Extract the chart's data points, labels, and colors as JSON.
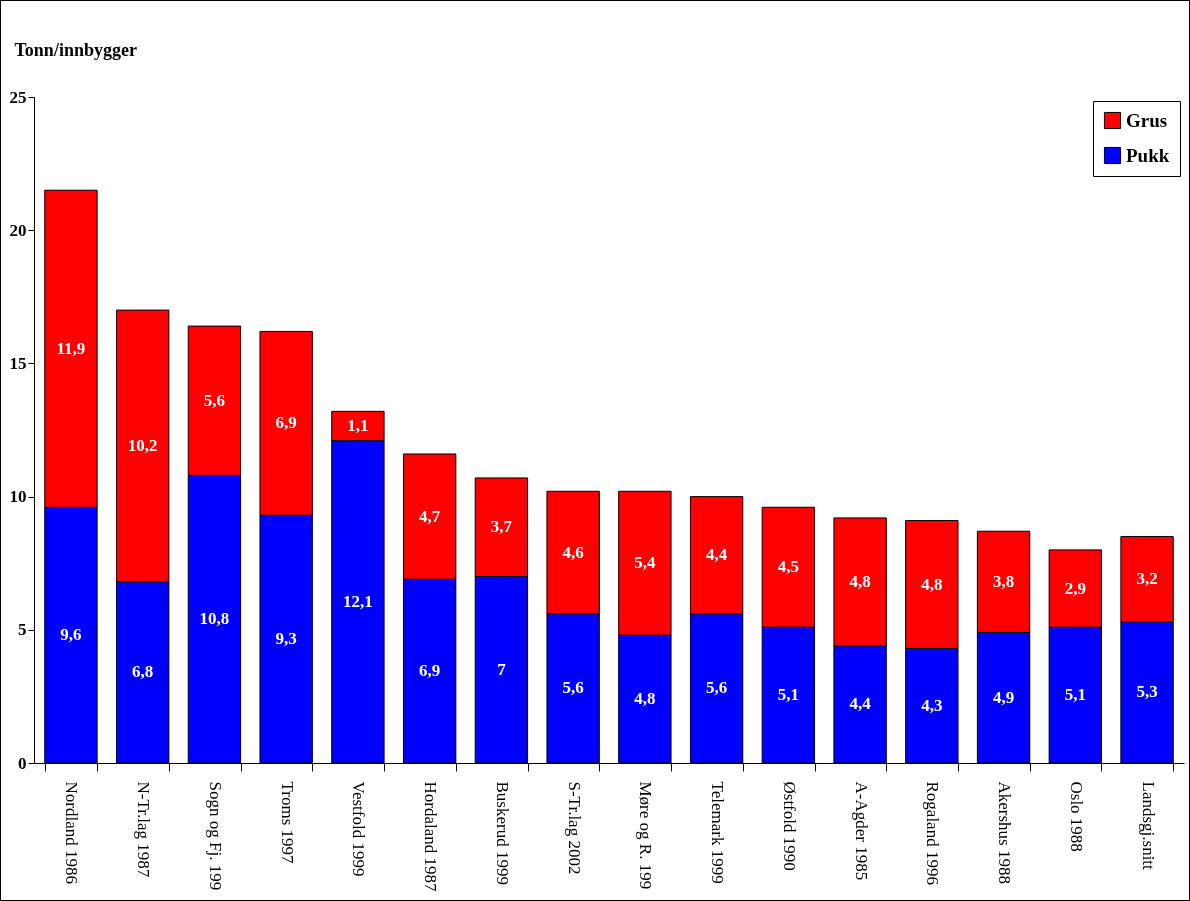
{
  "chart_data": {
    "type": "bar",
    "stacked": true,
    "ylabel": "Tonn/innbygger",
    "categories": [
      "Nordland 1986",
      "N-Tr.lag 1987",
      "Sogn og Fj. 199",
      "Troms 1997",
      "Vestfold 1999",
      "Hordaland 1987",
      "Buskerud 1999",
      "S-Tr.lag 2002",
      "Møre og R. 199",
      "Telemark 1999",
      "Østfold 1990",
      "A-Agder 1985",
      "Rogaland 1996",
      "Akershus 1988",
      "Oslo 1988",
      "Landsgj.snitt"
    ],
    "series": [
      {
        "name": "Pukk",
        "color": "#0000ff",
        "values": [
          9.6,
          6.8,
          10.8,
          9.3,
          12.1,
          6.9,
          7,
          5.6,
          4.8,
          5.6,
          5.1,
          4.4,
          4.3,
          4.9,
          5.1,
          5.3
        ],
        "value_labels": [
          "9,6",
          "6,8",
          "10,8",
          "9,3",
          "12,1",
          "6,9",
          "7",
          "5,6",
          "4,8",
          "5,6",
          "5,1",
          "4,4",
          "4,3",
          "4,9",
          "5,1",
          "5,3"
        ]
      },
      {
        "name": "Grus",
        "color": "#ff0000",
        "values": [
          11.9,
          10.2,
          5.6,
          6.9,
          1.1,
          4.7,
          3.7,
          4.6,
          5.4,
          4.4,
          4.5,
          4.8,
          4.8,
          3.8,
          2.9,
          3.2
        ],
        "value_labels": [
          "11,9",
          "10,2",
          "5,6",
          "6,9",
          "1,1",
          "4,7",
          "3,7",
          "4,6",
          "5,4",
          "4,4",
          "4,5",
          "4,8",
          "4,8",
          "3,8",
          "2,9",
          "3,2"
        ]
      }
    ],
    "ylim": [
      0,
      25
    ],
    "yticks": [
      0,
      5,
      10,
      15,
      20,
      25
    ],
    "grid": false,
    "legend": "top right"
  }
}
